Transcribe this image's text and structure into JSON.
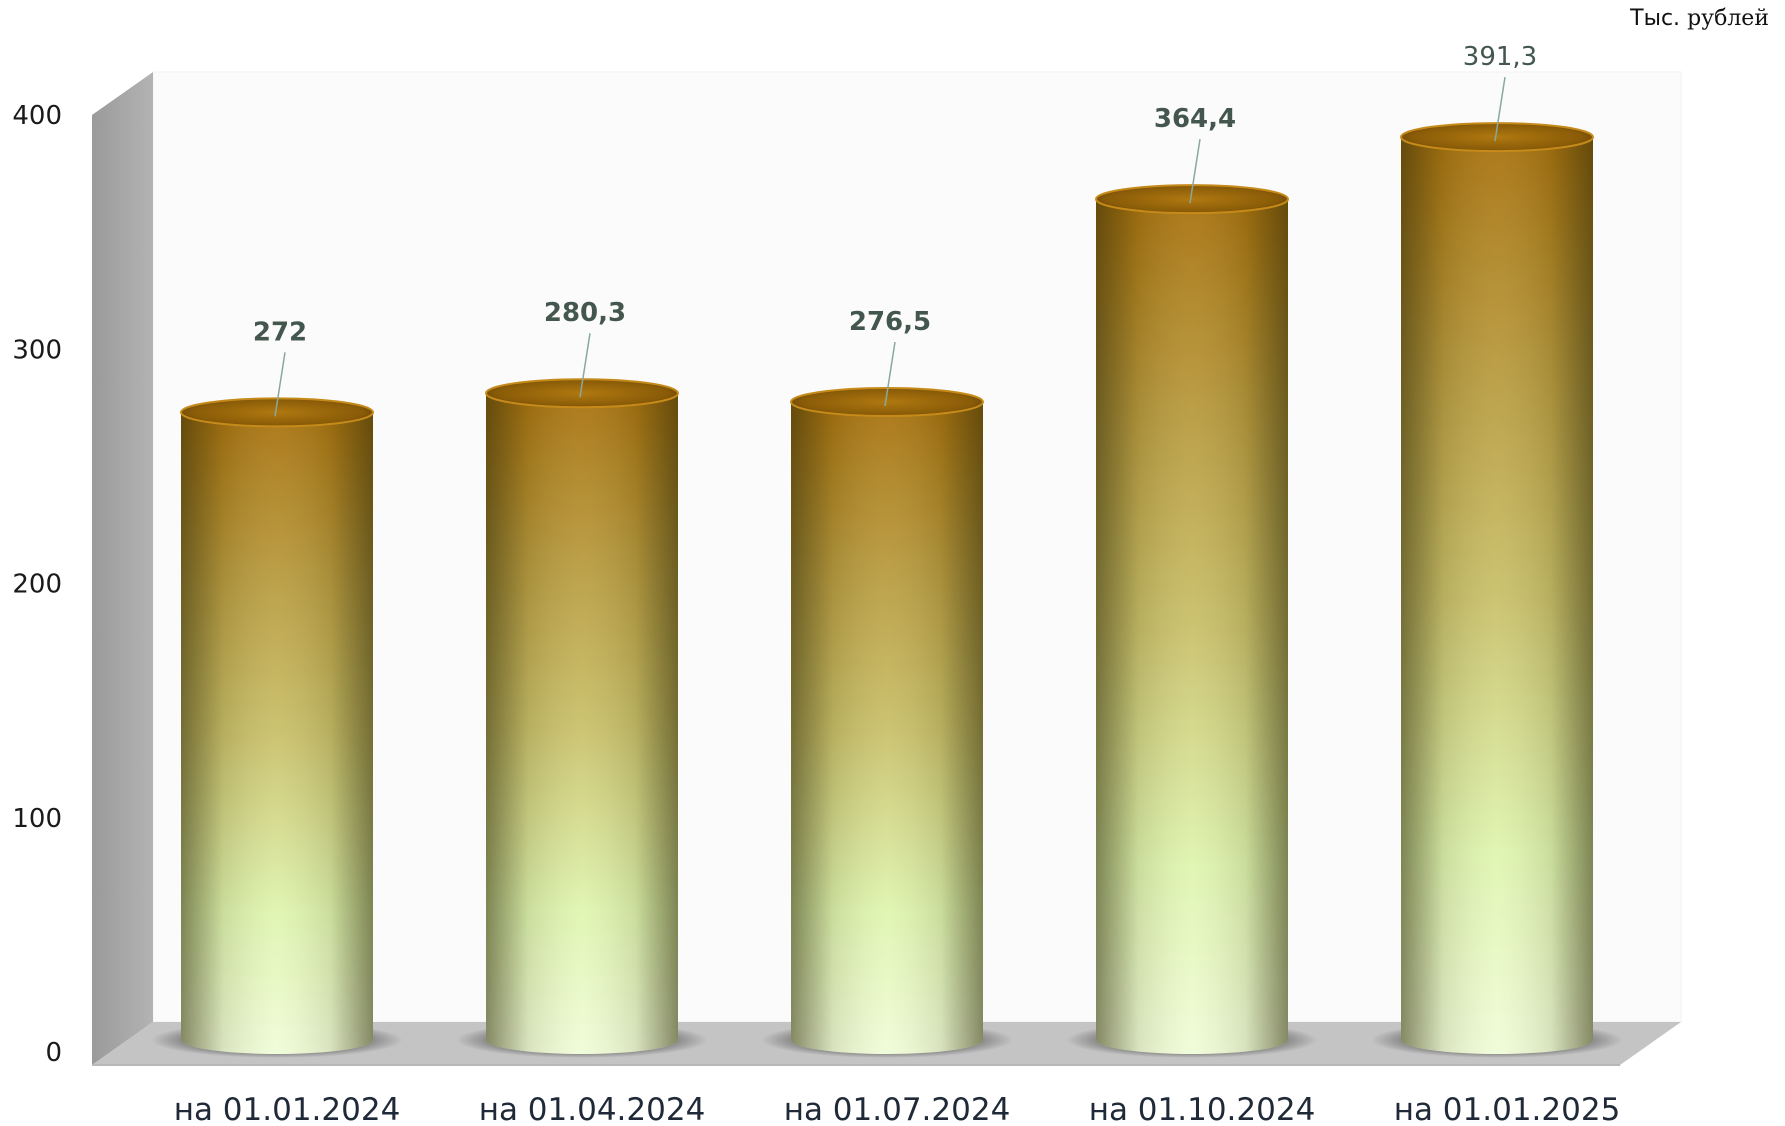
{
  "unit": {
    "prefix": "Тыс.",
    "suffix": "рублей"
  },
  "colors": {
    "bar_top": "#a8720e",
    "bar_mid": "#c5b35a",
    "bar_bottom": "#def7b8",
    "wall": "#a6a6a6",
    "floor": "#c4c4c4",
    "label": "#44574e"
  },
  "chart_data": {
    "type": "bar",
    "style": "3d-cylinder",
    "categories": [
      "на 01.01.2024",
      "на 01.04.2024",
      "на 01.07.2024",
      "на 01.10.2024",
      "на 01.01.2025"
    ],
    "values": [
      272,
      280.3,
      276.5,
      364.4,
      391.3
    ],
    "data_labels": [
      "272",
      "280,3",
      "276,5",
      "364,4",
      "391,3"
    ],
    "yticks": [
      0,
      100,
      200,
      300,
      400
    ],
    "ylim": [
      0,
      400
    ],
    "grid": false,
    "legend": "none"
  }
}
